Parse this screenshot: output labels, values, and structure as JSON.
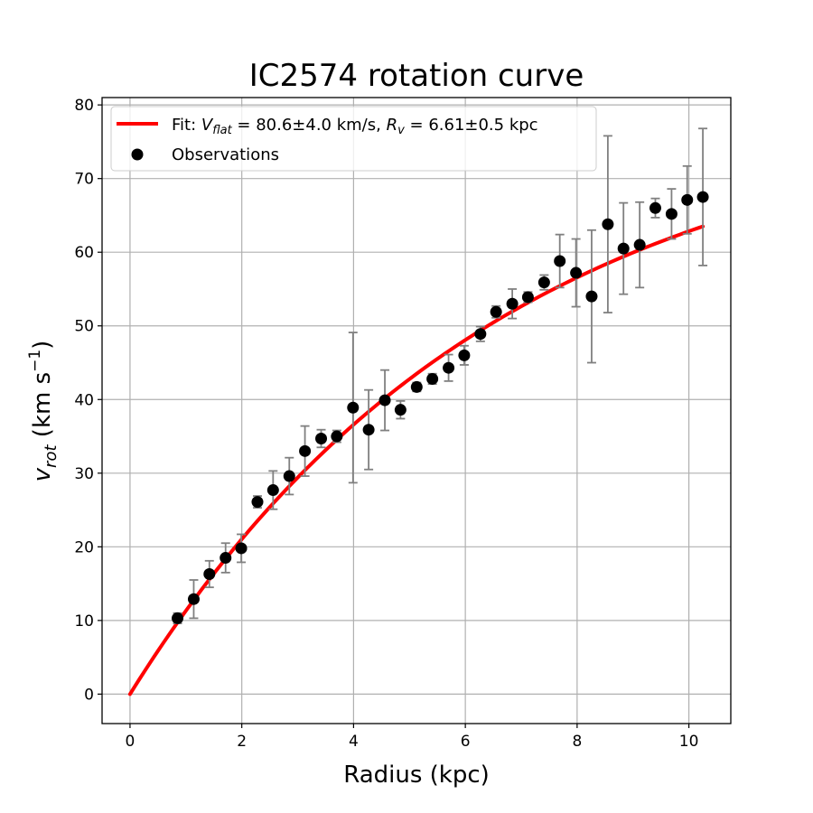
{
  "chart_data": {
    "type": "scatter",
    "title": "IC2574 rotation curve",
    "xlabel": "Radius (kpc)",
    "ylabel_main": "v",
    "ylabel_sub": "rot",
    "ylabel_units_pre": " (km s",
    "ylabel_units_exp": "−1",
    "ylabel_units_post": ")",
    "xlim": [
      -0.5,
      10.75
    ],
    "ylim": [
      -4,
      81
    ],
    "xticks": [
      0,
      2,
      4,
      6,
      8,
      10
    ],
    "yticks": [
      0,
      10,
      20,
      30,
      40,
      50,
      60,
      70,
      80
    ],
    "grid": true,
    "legend_position": "top-left",
    "colors": {
      "fit": "#ff0000",
      "points": "#000000",
      "errorbars": "#808080",
      "grid": "#b0b0b0"
    },
    "legend": {
      "fit_prefix": "Fit: ",
      "fit_v_main": "V",
      "fit_v_sub": "flat",
      "fit_v_value": " = 80.6±4.0 km/s, ",
      "fit_r_main": "R",
      "fit_r_sub": "v",
      "fit_r_value": " = 6.61±0.5 kpc",
      "observations": "Observations"
    },
    "fit": {
      "name": "Fit",
      "v_flat": 80.6,
      "r_v": 6.61,
      "x_range": [
        0,
        10.25
      ]
    },
    "series": [
      {
        "name": "Observations",
        "x": [
          0.85,
          1.14,
          1.42,
          1.71,
          1.99,
          2.28,
          2.56,
          2.85,
          3.13,
          3.42,
          3.7,
          3.99,
          4.27,
          4.56,
          4.84,
          5.13,
          5.41,
          5.7,
          5.98,
          6.27,
          6.55,
          6.84,
          7.12,
          7.41,
          7.69,
          7.98,
          8.26,
          8.55,
          8.83,
          9.12,
          9.4,
          9.69,
          9.97,
          10.25
        ],
        "y": [
          10.3,
          12.9,
          16.3,
          18.5,
          19.8,
          26.1,
          27.7,
          29.6,
          33.0,
          34.7,
          35.0,
          38.9,
          35.9,
          39.9,
          38.6,
          41.7,
          42.8,
          44.3,
          46.0,
          48.9,
          51.9,
          53.0,
          53.9,
          55.9,
          58.8,
          57.2,
          54.0,
          63.8,
          60.5,
          61.0,
          66.0,
          65.2,
          67.1,
          67.5
        ],
        "err": [
          0.7,
          2.6,
          1.8,
          2.0,
          1.9,
          0.8,
          2.6,
          2.5,
          3.4,
          1.2,
          0.8,
          10.2,
          5.4,
          4.1,
          1.2,
          0.6,
          0.7,
          1.8,
          1.3,
          1.0,
          0.8,
          2.0,
          0.7,
          1.0,
          3.6,
          4.6,
          9.0,
          12.0,
          6.2,
          5.8,
          1.3,
          3.4,
          4.6,
          9.3
        ]
      }
    ]
  }
}
